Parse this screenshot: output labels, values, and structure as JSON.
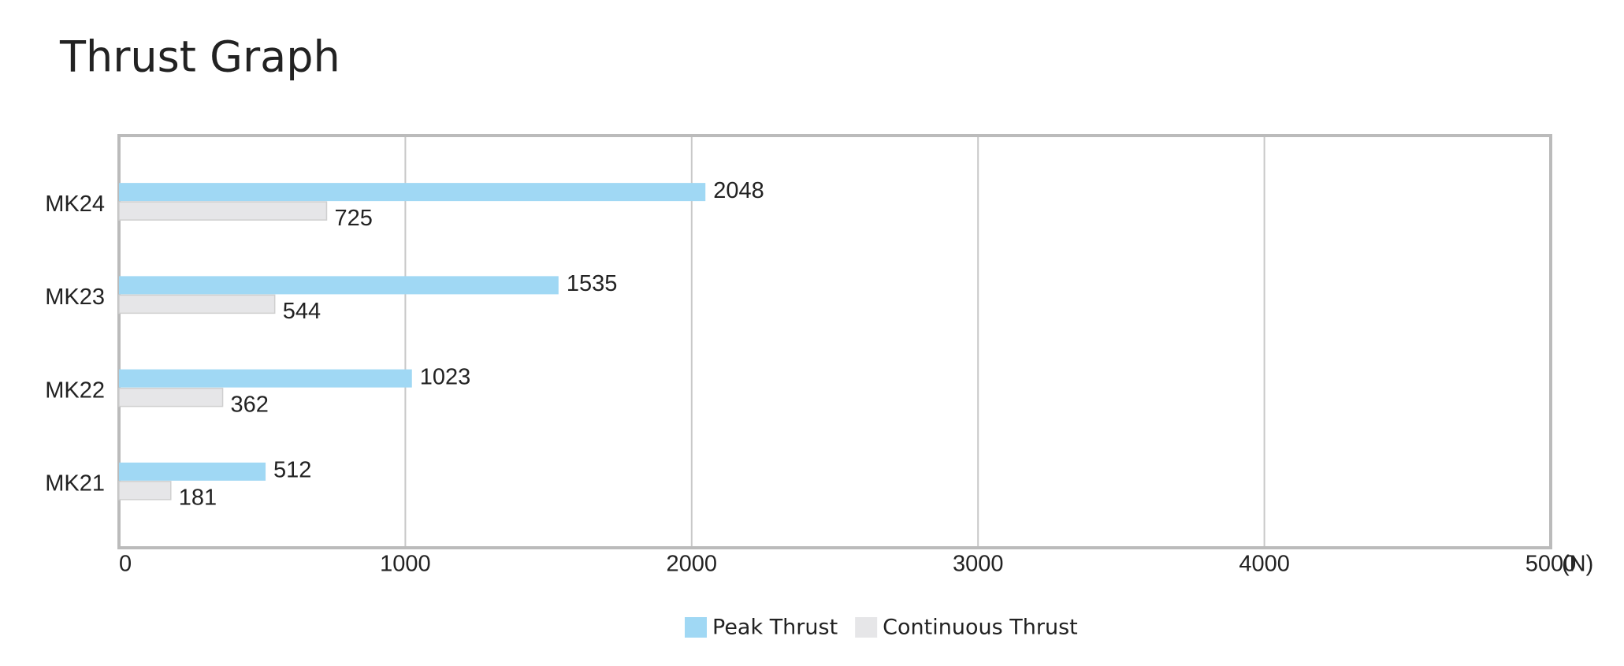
{
  "chart_data": {
    "type": "hbar",
    "title": "Thrust Graph",
    "x_label": "(N)",
    "categories": [
      "MK21",
      "MK22",
      "MK23",
      "MK24"
    ],
    "series": [
      {
        "name": "Peak Thrust",
        "color": "#a0d8f4",
        "values": [
          512,
          1023,
          1535,
          2048
        ]
      },
      {
        "name": "Continuous Thrust",
        "color": "#e6e6e8",
        "values": [
          181,
          362,
          544,
          725
        ]
      }
    ],
    "xlim": [
      0,
      5000
    ],
    "xticks": [
      0,
      1000,
      2000,
      3000,
      4000,
      5000
    ],
    "grid": true
  }
}
